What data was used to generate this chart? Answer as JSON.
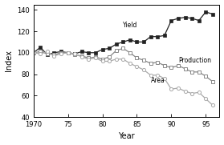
{
  "title": "",
  "xlabel": "Year",
  "ylabel": "Index",
  "xlim": [
    70,
    97
  ],
  "ylim": [
    40,
    145
  ],
  "yticks": [
    40,
    60,
    80,
    100,
    120,
    140
  ],
  "xticks": [
    70,
    75,
    80,
    85,
    90,
    95
  ],
  "xticklabels": [
    "1970",
    "75",
    "80",
    "85",
    "90",
    "95"
  ],
  "yield_data": {
    "years": [
      70,
      71,
      72,
      73,
      74,
      75,
      76,
      77,
      78,
      79,
      80,
      81,
      82,
      83,
      84,
      85,
      86,
      87,
      88,
      89,
      90,
      91,
      92,
      93,
      94,
      95,
      96
    ],
    "values": [
      100,
      105,
      98,
      100,
      101,
      100,
      99,
      101,
      100,
      100,
      103,
      104,
      108,
      110,
      112,
      110,
      110,
      115,
      115,
      116,
      130,
      132,
      133,
      132,
      130,
      138,
      136
    ],
    "color": "#222222",
    "marker": "s",
    "label": "Yield"
  },
  "production_data": {
    "years": [
      70,
      71,
      72,
      73,
      74,
      75,
      76,
      77,
      78,
      79,
      80,
      81,
      82,
      83,
      84,
      85,
      86,
      87,
      88,
      89,
      90,
      91,
      92,
      93,
      94,
      95,
      96
    ],
    "values": [
      100,
      101,
      99,
      98,
      100,
      100,
      98,
      97,
      95,
      96,
      94,
      96,
      102,
      104,
      100,
      95,
      93,
      90,
      91,
      88,
      86,
      88,
      85,
      82,
      82,
      78,
      73
    ],
    "color": "#888888",
    "marker": "s",
    "label": "Production"
  },
  "area_data": {
    "years": [
      70,
      71,
      72,
      73,
      74,
      75,
      76,
      77,
      78,
      79,
      80,
      81,
      82,
      83,
      84,
      85,
      86,
      87,
      88,
      89,
      90,
      91,
      92,
      93,
      94,
      95,
      96
    ],
    "values": [
      100,
      99,
      101,
      97,
      99,
      100,
      99,
      96,
      94,
      95,
      92,
      92,
      94,
      94,
      90,
      87,
      84,
      79,
      79,
      76,
      66,
      67,
      64,
      62,
      63,
      57,
      51
    ],
    "color": "#aaaaaa",
    "marker": "o",
    "label": "Area"
  },
  "label_positions": {
    "Yield": [
      83,
      122
    ],
    "Production": [
      91,
      93
    ],
    "Area": [
      87,
      74
    ]
  },
  "background_color": "#ffffff"
}
